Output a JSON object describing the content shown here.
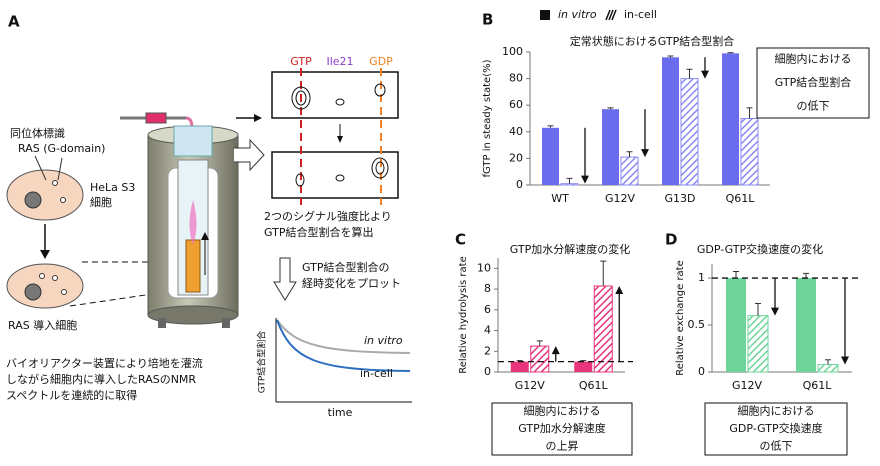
{
  "panel_a": {
    "label": "A",
    "isotope_label": [
      "同位体標識",
      "RAS (G-domain)"
    ],
    "cell_label": [
      "HeLa S3",
      "細胞"
    ],
    "transfected_cell": "RAS 導入細胞",
    "caption": [
      "バイオリアクター装置により培地を灌流",
      "しながら細胞内に導入したRASのNMR",
      "スペクトルを連続的に取得"
    ],
    "signals": [
      "GTP",
      "Ile21",
      "GDP"
    ],
    "ratio_text": [
      "2つのシグナル強度比より",
      "GTP結合型割合を算出"
    ],
    "plot_text": [
      "GTP結合型割合の",
      "経時変化をプロット"
    ],
    "mini_plot": {
      "ylabel": "GTP結合型割合",
      "xlabel": "time",
      "curves": [
        "in vitro",
        "in-cell"
      ]
    }
  },
  "chart_data": [
    {
      "type": "bar",
      "label": "B",
      "title": "定常状態におけるGTP結合型割合",
      "ylabel": "fGTP in steady state(%)",
      "categories": [
        "WT",
        "G12V",
        "G13D",
        "Q61L"
      ],
      "series": [
        {
          "name": "in vitro",
          "color": "#6b6bee",
          "hatch": false,
          "values": [
            43,
            57,
            96,
            99
          ],
          "errors": [
            1.5,
            1,
            1,
            0.5
          ]
        },
        {
          "name": "in-cell",
          "color": "#8a8af2",
          "hatch": true,
          "values": [
            1,
            21,
            80,
            50
          ],
          "errors": [
            4,
            4,
            7,
            8
          ]
        }
      ],
      "ylim": [
        0,
        100
      ],
      "yticks": [
        0,
        20,
        40,
        60,
        80,
        100
      ],
      "callout": [
        "細胞内における",
        "GTP結合型割合",
        "の低下"
      ]
    },
    {
      "type": "bar",
      "label": "C",
      "title": "GTP加水分解速度の変化",
      "ylabel": "Relative  hydrolysis rate",
      "categories": [
        "G12V",
        "Q61L"
      ],
      "series": [
        {
          "color": "#e8347a",
          "hatch": false,
          "values": [
            1,
            1
          ],
          "errors": [
            0.1,
            0.1
          ]
        },
        {
          "color": "#e8347a",
          "hatch": true,
          "values": [
            2.5,
            8.3
          ],
          "errors": [
            0.5,
            2.4
          ]
        }
      ],
      "ylim": [
        0,
        11
      ],
      "yticks": [
        0,
        2,
        4,
        6,
        8,
        10
      ],
      "reference_line": 1,
      "callout": [
        "細胞内における",
        "GTP加水分解速度",
        "の上昇"
      ]
    },
    {
      "type": "bar",
      "label": "D",
      "title": "GDP-GTP交換速度の変化",
      "ylabel": "Relative  exchange rate",
      "categories": [
        "G12V",
        "Q61L"
      ],
      "series": [
        {
          "color": "#6fd49a",
          "hatch": false,
          "values": [
            1,
            1
          ],
          "errors": [
            0.07,
            0.05
          ]
        },
        {
          "color": "#6fd49a",
          "hatch": true,
          "values": [
            0.6,
            0.08
          ],
          "errors": [
            0.13,
            0.05
          ]
        }
      ],
      "ylim": [
        0,
        1.15
      ],
      "yticks": [
        0,
        0.5,
        1
      ],
      "reference_line": 1,
      "callout": [
        "細胞内における",
        "GDP-GTP交換速度",
        "の低下"
      ]
    }
  ]
}
